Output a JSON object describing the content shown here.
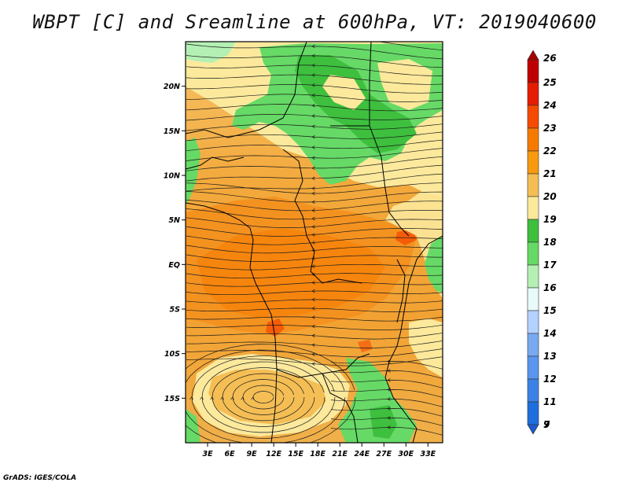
{
  "title": "WBPT [C] and Sreamline at 600hPa, VT: 2019040600",
  "credit": "GrADS: IGES/COLA",
  "map": {
    "lon_range": [
      0,
      35
    ],
    "lat_range": [
      -20,
      25
    ],
    "lon_ticks": [
      {
        "lon": 3,
        "label": "3E"
      },
      {
        "lon": 6,
        "label": "6E"
      },
      {
        "lon": 9,
        "label": "9E"
      },
      {
        "lon": 12,
        "label": "12E"
      },
      {
        "lon": 15,
        "label": "15E"
      },
      {
        "lon": 18,
        "label": "18E"
      },
      {
        "lon": 21,
        "label": "21E"
      },
      {
        "lon": 24,
        "label": "24E"
      },
      {
        "lon": 27,
        "label": "27E"
      },
      {
        "lon": 30,
        "label": "30E"
      },
      {
        "lon": 33,
        "label": "33E"
      }
    ],
    "lat_ticks": [
      {
        "lat": 20,
        "label": "20N"
      },
      {
        "lat": 15,
        "label": "15N"
      },
      {
        "lat": 10,
        "label": "10N"
      },
      {
        "lat": 5,
        "label": "5N"
      },
      {
        "lat": 0,
        "label": "EQ"
      },
      {
        "lat": -5,
        "label": "5S"
      },
      {
        "lat": -10,
        "label": "10S"
      },
      {
        "lat": -15,
        "label": "15S"
      }
    ]
  },
  "colorbar": {
    "levels": [
      {
        "label": "26",
        "color": "#a50000"
      },
      {
        "label": "25",
        "color": "#c00000"
      },
      {
        "label": "24",
        "color": "#e61c00"
      },
      {
        "label": "23",
        "color": "#f54a00"
      },
      {
        "label": "22",
        "color": "#f77a00"
      },
      {
        "label": "21",
        "color": "#f79a10"
      },
      {
        "label": "20",
        "color": "#f4be55"
      },
      {
        "label": "19",
        "color": "#fce99c"
      },
      {
        "label": "18",
        "color": "#3ebf3e"
      },
      {
        "label": "17",
        "color": "#66d966"
      },
      {
        "label": "16",
        "color": "#b4f0b4"
      },
      {
        "label": "15",
        "color": "#e8fafa"
      },
      {
        "label": "14",
        "color": "#b4d2ff"
      },
      {
        "label": "13",
        "color": "#78aaf2"
      },
      {
        "label": "12",
        "color": "#5a96ef"
      },
      {
        "label": "11",
        "color": "#3c82e6"
      },
      {
        "label": "9",
        "color": "#1e6ede"
      },
      {
        "label": "7",
        "color": "#1e5acd"
      }
    ]
  }
}
